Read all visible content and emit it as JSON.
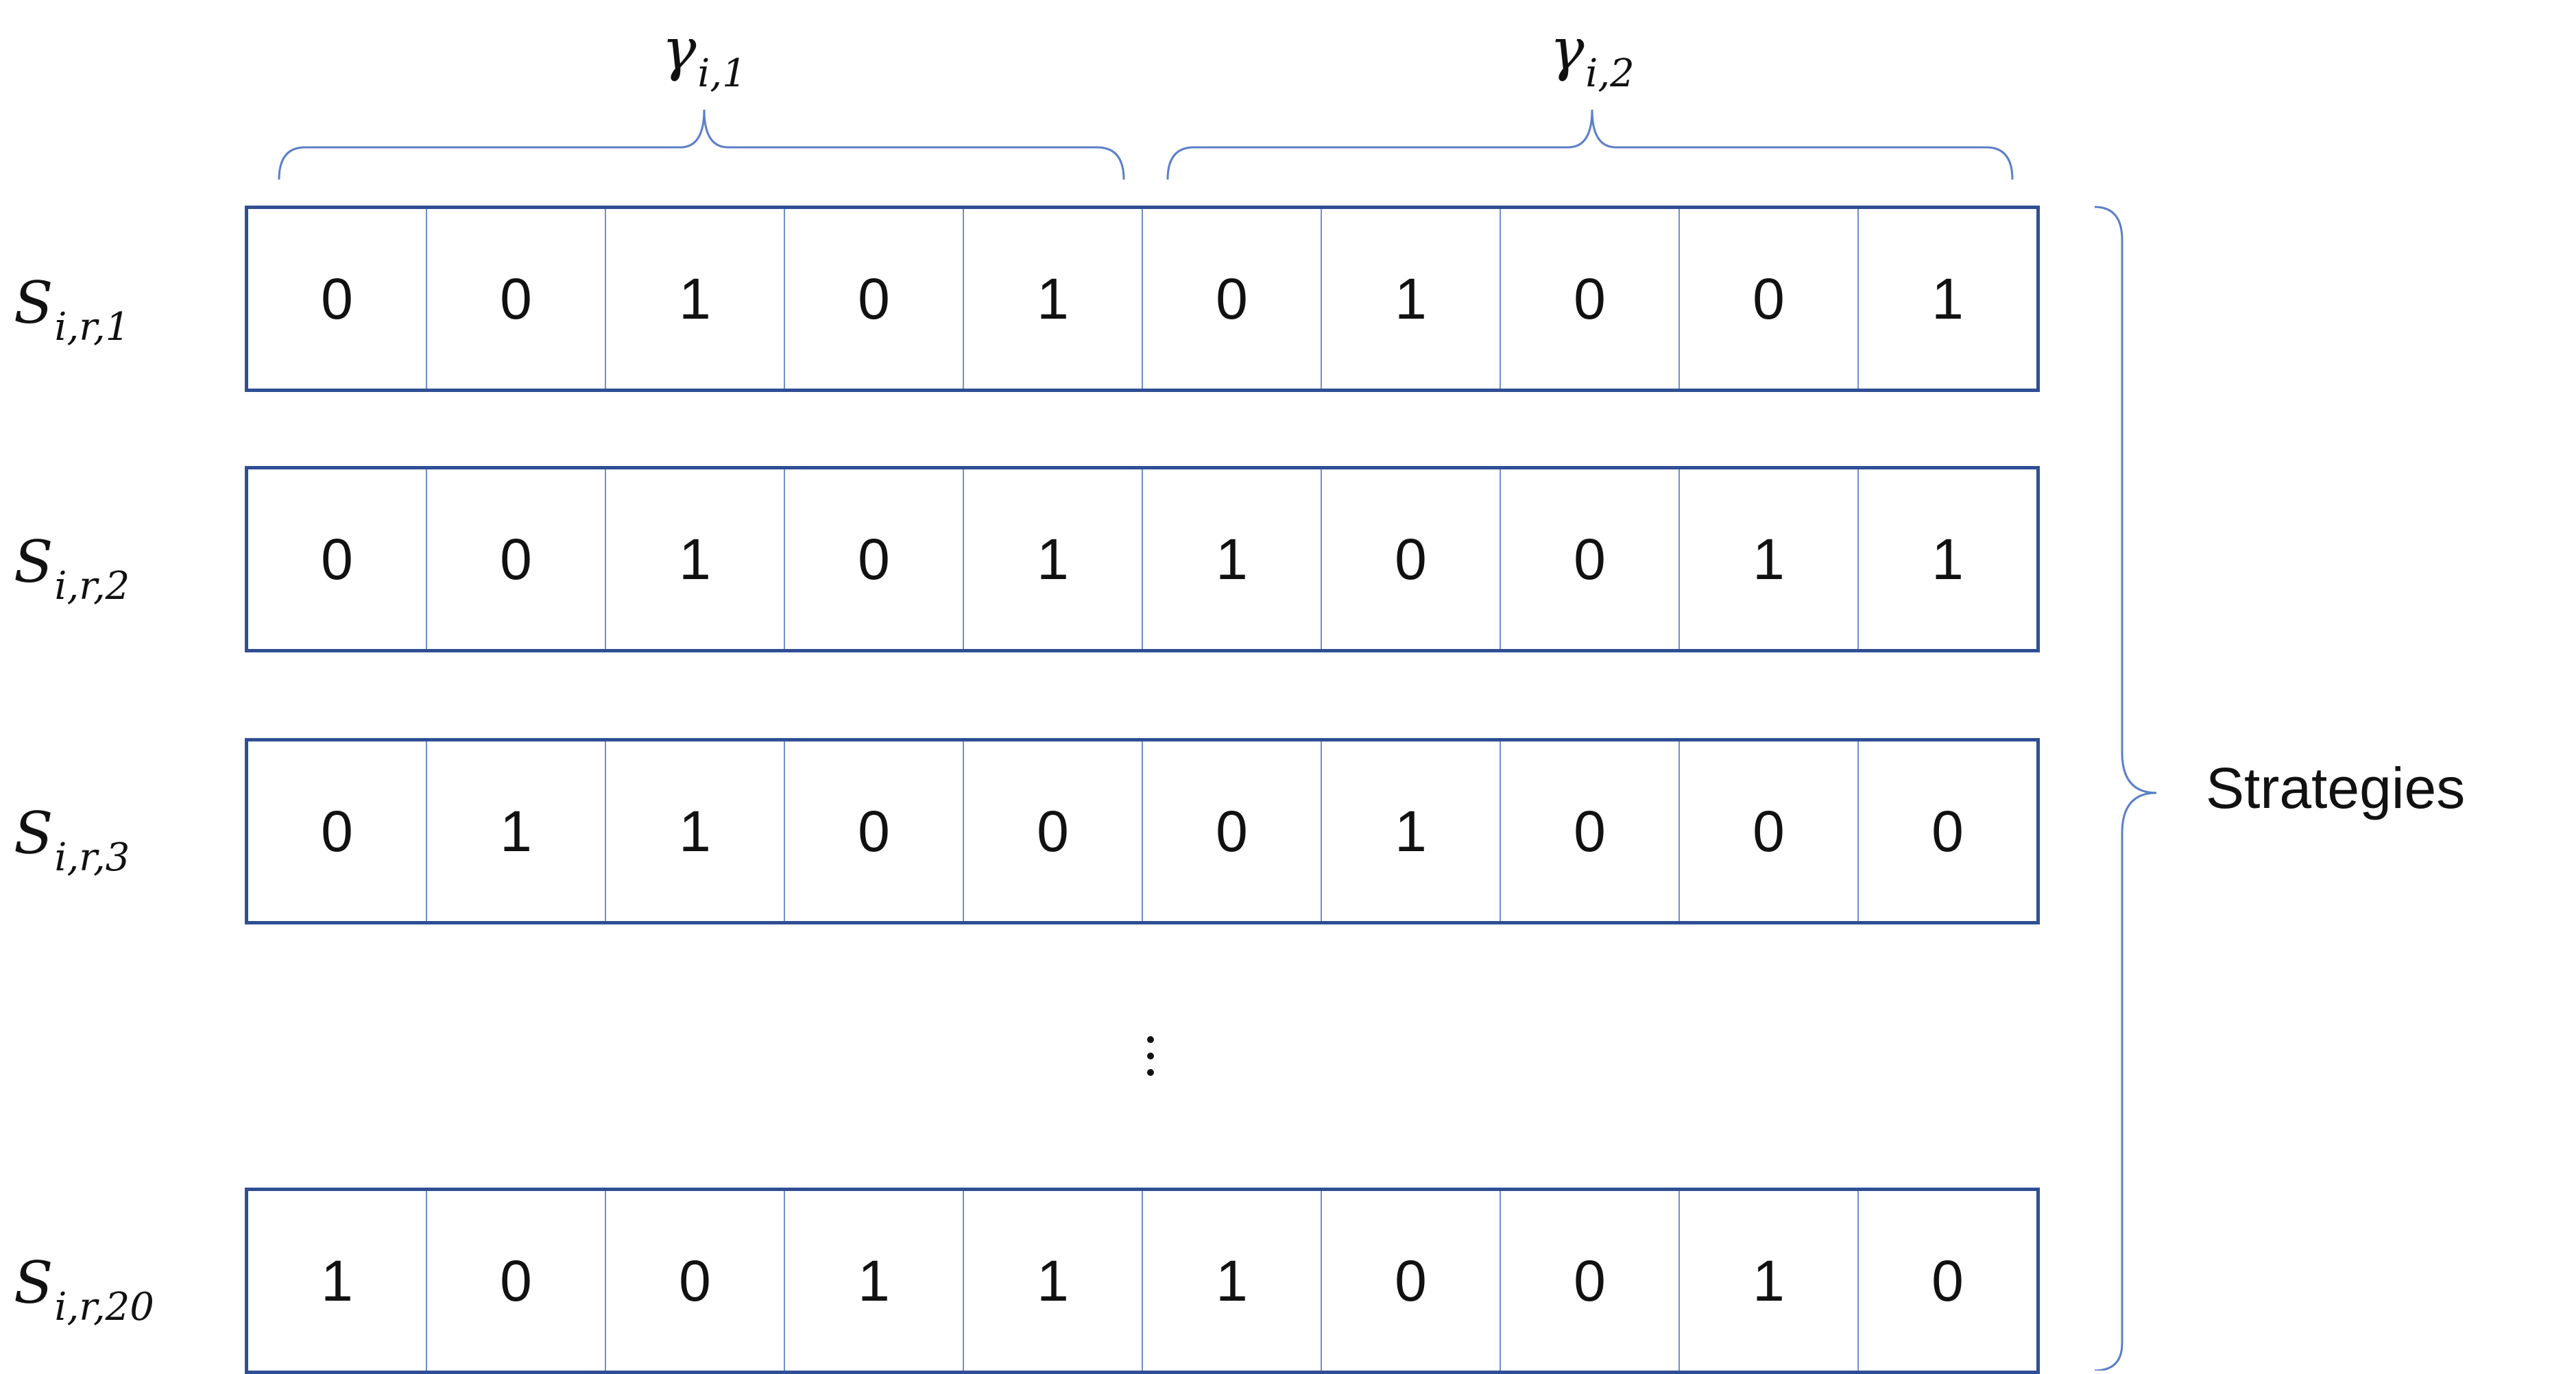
{
  "groups": [
    {
      "symbol": "γ",
      "subscript": "i,1"
    },
    {
      "symbol": "γ",
      "subscript": "i,2"
    }
  ],
  "rows": [
    {
      "symbol": "S",
      "subscript": "i,r,1",
      "bits": [
        "0",
        "0",
        "1",
        "0",
        "1",
        "0",
        "1",
        "0",
        "0",
        "1"
      ]
    },
    {
      "symbol": "S",
      "subscript": "i,r,2",
      "bits": [
        "0",
        "0",
        "1",
        "0",
        "1",
        "1",
        "0",
        "0",
        "1",
        "1"
      ]
    },
    {
      "symbol": "S",
      "subscript": "i,r,3",
      "bits": [
        "0",
        "1",
        "1",
        "0",
        "0",
        "0",
        "1",
        "0",
        "0",
        "0"
      ]
    },
    {
      "symbol": "S",
      "subscript": "i,r,20",
      "bits": [
        "1",
        "0",
        "0",
        "1",
        "1",
        "1",
        "0",
        "0",
        "1",
        "0"
      ]
    }
  ],
  "ellipsis": "⋮",
  "side_label": "Strategies",
  "colors": {
    "strip_border": "#2f4f94",
    "cell_divider": "#6e8fcf",
    "brace": "#5b7fc7",
    "text": "#111111"
  }
}
